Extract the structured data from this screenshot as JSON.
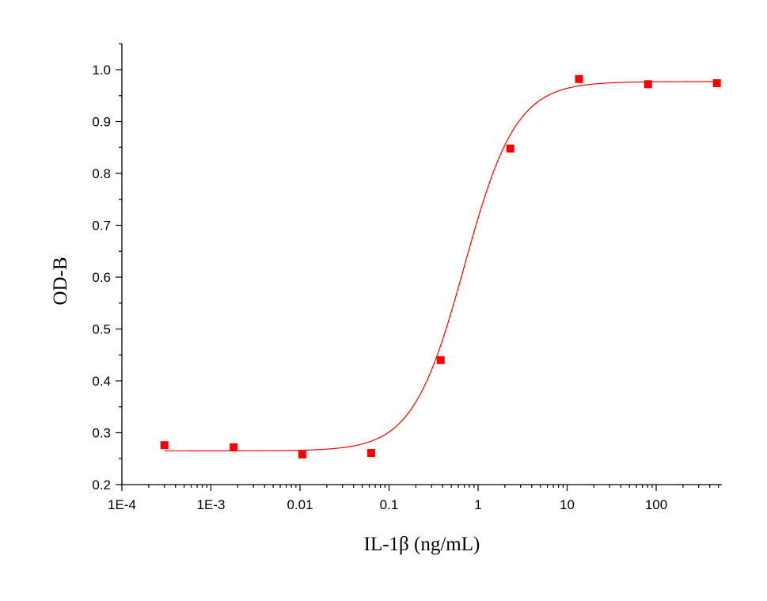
{
  "chart_data": {
    "type": "scatter",
    "title": "",
    "xlabel": "IL-1β  (ng/mL)",
    "ylabel": "OD-B",
    "x_scale": "log",
    "xlim": [
      0.0001,
      500
    ],
    "ylim": [
      0.2,
      1.05
    ],
    "x_ticks": [
      0.0001,
      0.001,
      0.01,
      0.1,
      1,
      10,
      100
    ],
    "x_tick_labels": [
      "1E-4",
      "1E-3",
      "0.01",
      "0.1",
      "1",
      "10",
      "100"
    ],
    "y_ticks": [
      0.2,
      0.3,
      0.4,
      0.5,
      0.6,
      0.7,
      0.8,
      0.9,
      1.0
    ],
    "y_tick_labels": [
      "0.2",
      "0.3",
      "0.4",
      "0.5",
      "0.6",
      "0.7",
      "0.8",
      "0.9",
      "1.0"
    ],
    "grid": false,
    "series": [
      {
        "type": "scatter",
        "marker": "square",
        "color": "#ff0000",
        "x": [
          0.0003,
          0.0018,
          0.0106,
          0.063,
          0.38,
          2.3,
          13.6,
          81,
          480
        ],
        "y": [
          0.276,
          0.272,
          0.258,
          0.261,
          0.44,
          0.848,
          0.982,
          0.972,
          0.974
        ]
      },
      {
        "type": "line",
        "fit": "4PL",
        "color": "#ff0000",
        "bottom": 0.265,
        "top": 0.977,
        "ec50": 0.7,
        "hill": 1.5
      }
    ]
  }
}
